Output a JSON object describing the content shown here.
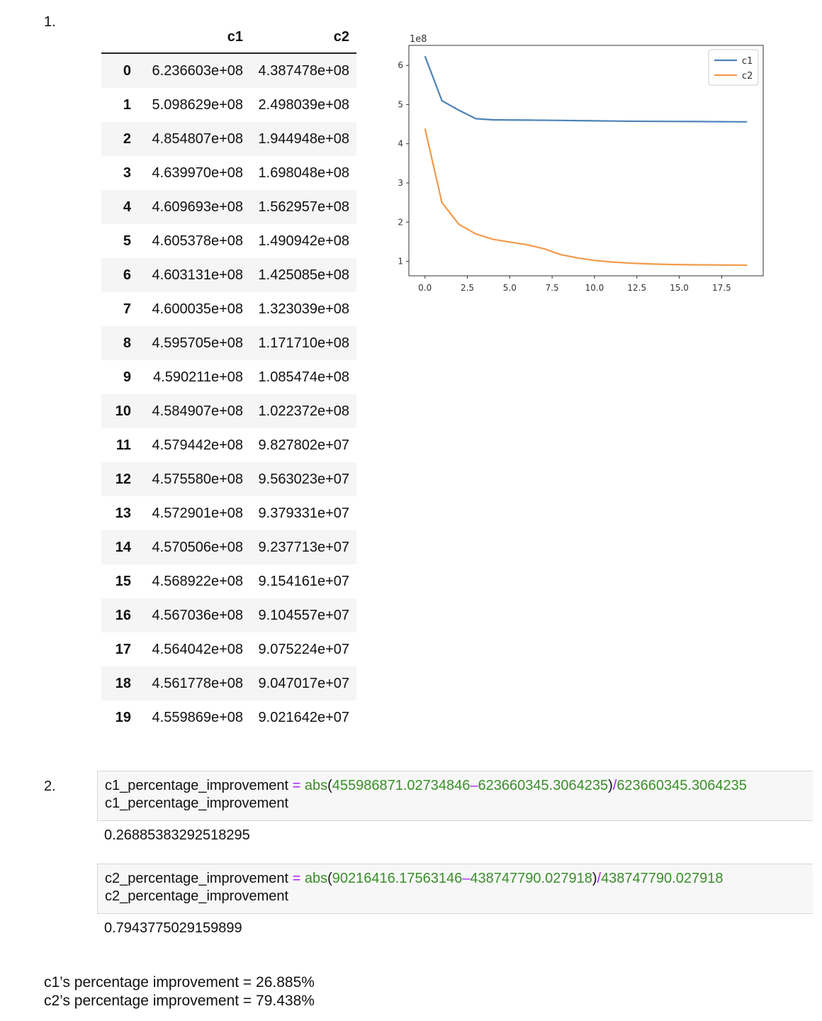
{
  "section1_number": "1.",
  "section2_number": "2.",
  "table": {
    "columns": [
      "c1",
      "c2"
    ],
    "rows": [
      {
        "idx": "0",
        "c1": "6.236603e+08",
        "c2": "4.387478e+08"
      },
      {
        "idx": "1",
        "c1": "5.098629e+08",
        "c2": "2.498039e+08"
      },
      {
        "idx": "2",
        "c1": "4.854807e+08",
        "c2": "1.944948e+08"
      },
      {
        "idx": "3",
        "c1": "4.639970e+08",
        "c2": "1.698048e+08"
      },
      {
        "idx": "4",
        "c1": "4.609693e+08",
        "c2": "1.562957e+08"
      },
      {
        "idx": "5",
        "c1": "4.605378e+08",
        "c2": "1.490942e+08"
      },
      {
        "idx": "6",
        "c1": "4.603131e+08",
        "c2": "1.425085e+08"
      },
      {
        "idx": "7",
        "c1": "4.600035e+08",
        "c2": "1.323039e+08"
      },
      {
        "idx": "8",
        "c1": "4.595705e+08",
        "c2": "1.171710e+08"
      },
      {
        "idx": "9",
        "c1": "4.590211e+08",
        "c2": "1.085474e+08"
      },
      {
        "idx": "10",
        "c1": "4.584907e+08",
        "c2": "1.022372e+08"
      },
      {
        "idx": "11",
        "c1": "4.579442e+08",
        "c2": "9.827802e+07"
      },
      {
        "idx": "12",
        "c1": "4.575580e+08",
        "c2": "9.563023e+07"
      },
      {
        "idx": "13",
        "c1": "4.572901e+08",
        "c2": "9.379331e+07"
      },
      {
        "idx": "14",
        "c1": "4.570506e+08",
        "c2": "9.237713e+07"
      },
      {
        "idx": "15",
        "c1": "4.568922e+08",
        "c2": "9.154161e+07"
      },
      {
        "idx": "16",
        "c1": "4.567036e+08",
        "c2": "9.104557e+07"
      },
      {
        "idx": "17",
        "c1": "4.564042e+08",
        "c2": "9.075224e+07"
      },
      {
        "idx": "18",
        "c1": "4.561778e+08",
        "c2": "9.047017e+07"
      },
      {
        "idx": "19",
        "c1": "4.559869e+08",
        "c2": "9.021642e+07"
      }
    ]
  },
  "chart_data": {
    "type": "line",
    "scale_label": "1e8",
    "x": [
      0,
      1,
      2,
      3,
      4,
      5,
      6,
      7,
      8,
      9,
      10,
      11,
      12,
      13,
      14,
      15,
      16,
      17,
      18,
      19
    ],
    "series": [
      {
        "name": "c1",
        "color": "#4c82b8",
        "values": [
          6.236603,
          5.098629,
          4.854807,
          4.63997,
          4.609693,
          4.605378,
          4.603131,
          4.600035,
          4.595705,
          4.590211,
          4.584907,
          4.579442,
          4.57558,
          4.572901,
          4.570506,
          4.568922,
          4.567036,
          4.564042,
          4.561778,
          4.559869
        ]
      },
      {
        "name": "c2",
        "color": "#f39a4a",
        "values": [
          4.387478,
          2.498039,
          1.944948,
          1.698048,
          1.562957,
          1.490942,
          1.425085,
          1.323039,
          1.17171,
          1.085474,
          1.022372,
          0.9827802,
          0.9563023,
          0.9379331,
          0.9237713,
          0.9154161,
          0.9104557,
          0.9075224,
          0.9047017,
          0.9021642
        ]
      }
    ],
    "xticks": [
      0,
      2.5,
      5,
      7.5,
      10,
      12.5,
      15,
      17.5
    ],
    "xtick_labels": [
      "0.0",
      "2.5",
      "5.0",
      "7.5",
      "10.0",
      "12.5",
      "15.0",
      "17.5"
    ],
    "yticks": [
      1,
      2,
      3,
      4,
      5,
      6
    ],
    "ytick_labels": [
      "1",
      "2",
      "3",
      "4",
      "5",
      "6"
    ],
    "xlim": [
      -0.95,
      19.95
    ],
    "ylim": [
      0.63,
      6.51
    ],
    "legend_position": "top-right",
    "grid": false
  },
  "cell1": {
    "var": "c1_percentage_improvement",
    "eq": " = ",
    "fn": "abs",
    "open": "(",
    "a": "455986871.02734846",
    "minus": "–",
    "b": "623660345.3064235",
    "close": ")",
    "div": "/",
    "c": "623660345.3064235",
    "line2": "c1_percentage_improvement",
    "output": "0.26885383292518295"
  },
  "cell2": {
    "var": "c2_percentage_improvement",
    "eq": " = ",
    "fn": "abs",
    "open": "(",
    "a": "90216416.17563146",
    "minus": "–",
    "b": "438747790.027918",
    "close": ")",
    "div": "/",
    "c": "438747790.027918",
    "line2": "c2_percentage_improvement",
    "output": "0.7943775029159899"
  },
  "summary": {
    "line1": "c1’s percentage improvement = 26.885%",
    "line2": "c2’s percentage improvement = 79.438%"
  }
}
